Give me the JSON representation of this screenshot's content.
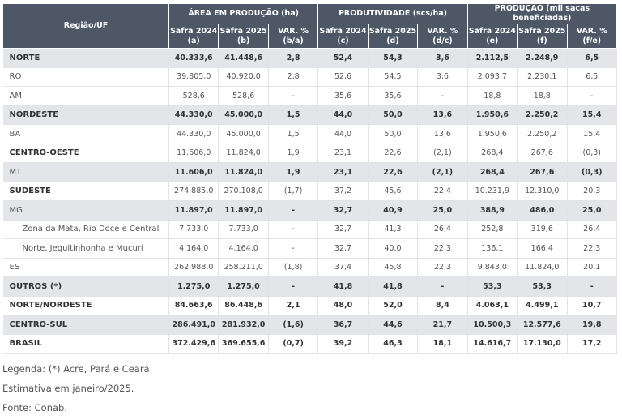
{
  "table": {
    "corner": "Região/UF",
    "groups": [
      "ÁREA EM PRODUÇÃO (ha)",
      "PRODUTIVIDADE (scs/ha)",
      "PRODUÇÃO (mil sacas beneficiadas)"
    ],
    "subheaders": [
      [
        "Safra 2024",
        "(a)"
      ],
      [
        "Safra 2025",
        "(b)"
      ],
      [
        "VAR. %",
        "(b/a)"
      ],
      [
        "Safra 2024",
        "(c)"
      ],
      [
        "Safra 2025",
        "(d)"
      ],
      [
        "VAR. %",
        "(d/c)"
      ],
      [
        "Safra 2024",
        "(e)"
      ],
      [
        "Safra 2025",
        "(f)"
      ],
      [
        "VAR. %",
        "(f/e)"
      ]
    ],
    "rows": [
      [
        "NORTE",
        "40.333,6",
        "41.448,6",
        "2,8",
        "52,4",
        "54,3",
        "3,6",
        "2.112,5",
        "2.248,9",
        "6,5"
      ],
      [
        "RO",
        "39.805,0",
        "40.920,0",
        "2,8",
        "52,6",
        "54,5",
        "3,6",
        "2.093,7",
        "2.230,1",
        "6,5"
      ],
      [
        "AM",
        "528,6",
        "528,6",
        "-",
        "35,6",
        "35,6",
        "-",
        "18,8",
        "18,8",
        "-"
      ],
      [
        "NORDESTE",
        "44.330,0",
        "45.000,0",
        "1,5",
        "44,0",
        "50,0",
        "13,6",
        "1.950,6",
        "2.250,2",
        "15,4"
      ],
      [
        "BA",
        "44.330,0",
        "45.000,0",
        "1,5",
        "44,0",
        "50,0",
        "13,6",
        "1.950,6",
        "2.250,2",
        "15,4"
      ],
      [
        "CENTRO-OESTE",
        "11.606,0",
        "11.824,0",
        "1,9",
        "23,1",
        "22,6",
        "(2,1)",
        "268,4",
        "267,6",
        "(0,3)"
      ],
      [
        "MT",
        "11.606,0",
        "11.824,0",
        "1,9",
        "23,1",
        "22,6",
        "(2,1)",
        "268,4",
        "267,6",
        "(0,3)"
      ],
      [
        "SUDESTE",
        "274.885,0",
        "270.108,0",
        "(1,7)",
        "37,2",
        "45,6",
        "22,4",
        "10.231,9",
        "12.310,0",
        "20,3"
      ],
      [
        "MG",
        "11.897,0",
        "11.897,0",
        "-",
        "32,7",
        "40,9",
        "25,0",
        "388,9",
        "486,0",
        "25,0"
      ],
      [
        "Zona da Mata, Rio Doce e Central",
        "7.733,0",
        "7.733,0",
        "-",
        "32,7",
        "41,3",
        "26,4",
        "252,8",
        "319,6",
        "26,4"
      ],
      [
        "Norte, Jequitinhonha e Mucuri",
        "4.164,0",
        "4.164,0",
        "-",
        "32,7",
        "40,0",
        "22,3",
        "136,1",
        "166,4",
        "22,3"
      ],
      [
        "ES",
        "262.988,0",
        "258.211,0",
        "(1,8)",
        "37,4",
        "45,8",
        "22,3",
        "9.843,0",
        "11.824,0",
        "20,1"
      ],
      [
        "OUTROS (*)",
        "1.275,0",
        "1.275,0",
        "-",
        "41,8",
        "41,8",
        "-",
        "53,3",
        "53,3",
        "-"
      ],
      [
        "NORTE/NORDESTE",
        "84.663,6",
        "86.448,6",
        "2,1",
        "48,0",
        "52,0",
        "8,4",
        "4.063,1",
        "4.499,1",
        "10,7"
      ],
      [
        "CENTRO-SUL",
        "286.491,0",
        "281.932,0",
        "(1,6)",
        "36,7",
        "44,6",
        "21,7",
        "10.500,3",
        "12.577,6",
        "19,8"
      ],
      [
        "BRASIL",
        "372.429,6",
        "369.655,6",
        "(0,7)",
        "39,2",
        "46,3",
        "18,1",
        "14.616,7",
        "17.130,0",
        "17,2"
      ]
    ]
  },
  "notes": [
    "Legenda: (*) Acre, Pará e Ceará.",
    "Estimativa em janeiro/2025.",
    "Fonte: Conab."
  ]
}
